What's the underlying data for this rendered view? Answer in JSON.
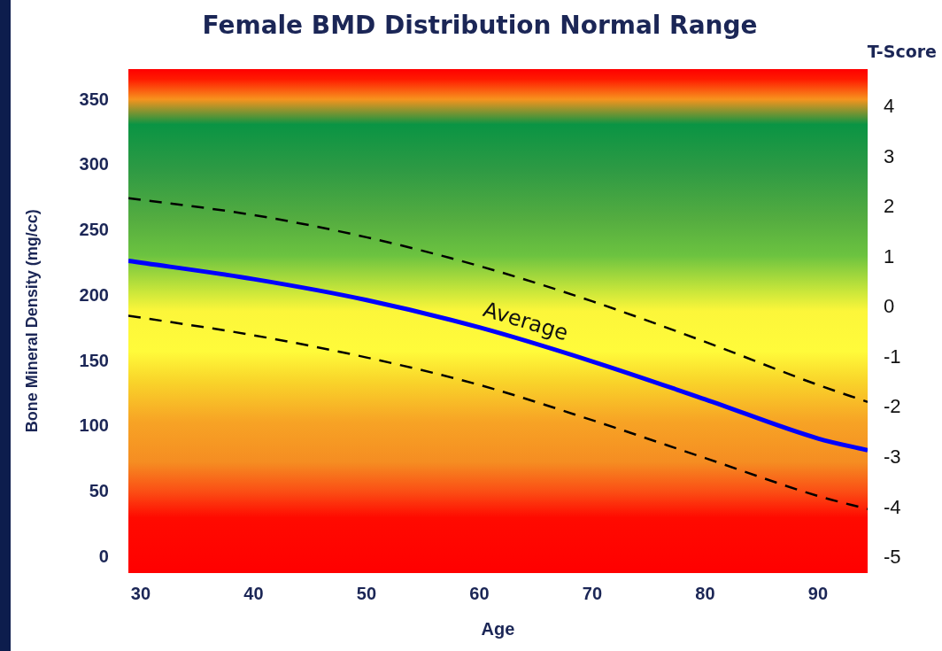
{
  "chart_data": {
    "type": "line",
    "title": "Female BMD Distribution Normal Range",
    "xlabel": "Age",
    "ylabel": "Bone Mineral Density (mg/cc)",
    "y2label": "T-Score",
    "x": [
      28.9,
      40,
      50,
      60,
      70,
      80,
      90,
      94.4
    ],
    "series": [
      {
        "name": "Average",
        "color": "#0000ff",
        "values": [
          227,
          213,
          197,
          176,
          150,
          121,
          91,
          82
        ],
        "line_style": "solid"
      },
      {
        "color": "#000000",
        "values": [
          275,
          262,
          245,
          223,
          196,
          165,
          132,
          119
        ],
        "line_style": "dashed"
      },
      {
        "color": "#000000",
        "values": [
          185,
          170,
          153,
          132,
          105,
          76,
          47,
          37
        ],
        "line_style": "dashed"
      }
    ],
    "xlim": [
      28.9,
      94.4
    ],
    "xticks": [
      30,
      40,
      50,
      60,
      70,
      80,
      90
    ],
    "ylim": [
      -12,
      374
    ],
    "yticks": [
      0,
      50,
      100,
      150,
      200,
      250,
      300,
      350
    ],
    "y2lim": [
      -5.3,
      4.77
    ],
    "y2ticks": [
      4,
      3,
      2,
      1,
      0,
      -1,
      -2,
      -3,
      -4,
      -5
    ],
    "grid": false,
    "legend": false,
    "marker": "none"
  }
}
